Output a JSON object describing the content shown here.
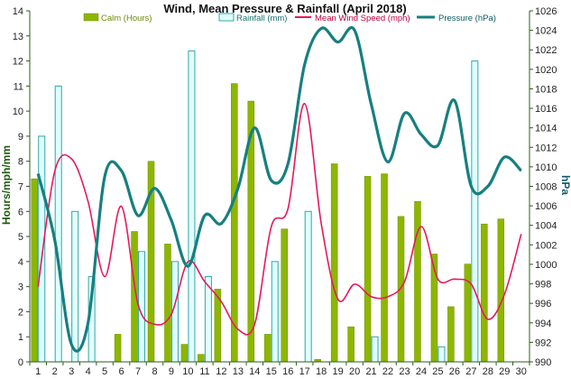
{
  "chart_data": {
    "type": "bar",
    "title": "Wind, Mean Pressure & Rainfall (April 2018)",
    "ylabel": "Hours/mph/mm",
    "y2label": "hPa",
    "ylim": [
      0,
      14
    ],
    "y2lim": [
      990,
      1026
    ],
    "grid": false,
    "legend_position": "top",
    "categories": [
      "1",
      "2",
      "3",
      "4",
      "5",
      "6",
      "7",
      "8",
      "9",
      "10",
      "11",
      "12",
      "13",
      "14",
      "15",
      "16",
      "17",
      "18",
      "19",
      "20",
      "21",
      "22",
      "23",
      "24",
      "25",
      "26",
      "27",
      "28",
      "29",
      "30"
    ],
    "y_ticks": [
      "0",
      "1",
      "2",
      "3",
      "4",
      "5",
      "6",
      "7",
      "8",
      "9",
      "10",
      "11",
      "12",
      "13",
      "14"
    ],
    "y2_ticks": [
      "990",
      "992",
      "994",
      "996",
      "998",
      "1000",
      "1002",
      "1004",
      "1006",
      "1008",
      "1010",
      "1012",
      "1014",
      "1016",
      "1018",
      "1020",
      "1022",
      "1024",
      "1026"
    ],
    "series": [
      {
        "name": "Calm (Hours)",
        "kind": "bar",
        "axis": "left",
        "color": "#8db600",
        "values": [
          7.3,
          0,
          0,
          0,
          0,
          1.1,
          5.2,
          8.0,
          4.7,
          0.7,
          0.3,
          2.9,
          11.1,
          10.4,
          1.1,
          5.3,
          0,
          0.1,
          7.9,
          1.4,
          7.4,
          7.5,
          5.8,
          6.4,
          4.3,
          2.2,
          3.9,
          5.5,
          5.7,
          0
        ]
      },
      {
        "name": "Rainfall (mm)",
        "kind": "bar",
        "axis": "left",
        "color": "#e0ffff",
        "stroke": "#33a6a6",
        "values": [
          9.0,
          11.0,
          6.0,
          3.4,
          0,
          0,
          4.4,
          0,
          4.0,
          12.4,
          3.4,
          0,
          0,
          0,
          4.0,
          0,
          6.0,
          0,
          0,
          0,
          1.0,
          0,
          0,
          0,
          0.6,
          0,
          12.0,
          0,
          0,
          0
        ]
      },
      {
        "name": "Mean Wind Speed (mph)",
        "kind": "line",
        "axis": "left",
        "color": "#e6195a",
        "values": [
          3.0,
          7.6,
          8.1,
          6.4,
          3.4,
          6.2,
          2.3,
          1.5,
          1.9,
          4.0,
          3.2,
          2.4,
          1.3,
          1.5,
          5.4,
          6.1,
          10.3,
          5.5,
          2.5,
          3.1,
          2.6,
          2.6,
          3.2,
          5.4,
          3.3,
          3.3,
          3.1,
          1.7,
          2.7,
          5.1
        ]
      },
      {
        "name": "Pressure (hPa)",
        "kind": "line",
        "axis": "right",
        "color": "#177f80",
        "values": [
          1009.3,
          1002.5,
          991.8,
          994.0,
          1009.0,
          1009.6,
          1005.0,
          1007.8,
          1004.5,
          999.8,
          1005.0,
          1004.2,
          1007.8,
          1014.0,
          1008.6,
          1010.3,
          1020.5,
          1024.2,
          1022.8,
          1024.0,
          1016.4,
          1010.5,
          1015.5,
          1013.3,
          1012.2,
          1016.8,
          1008.0,
          1008.0,
          1011.0,
          1009.6
        ]
      }
    ]
  }
}
